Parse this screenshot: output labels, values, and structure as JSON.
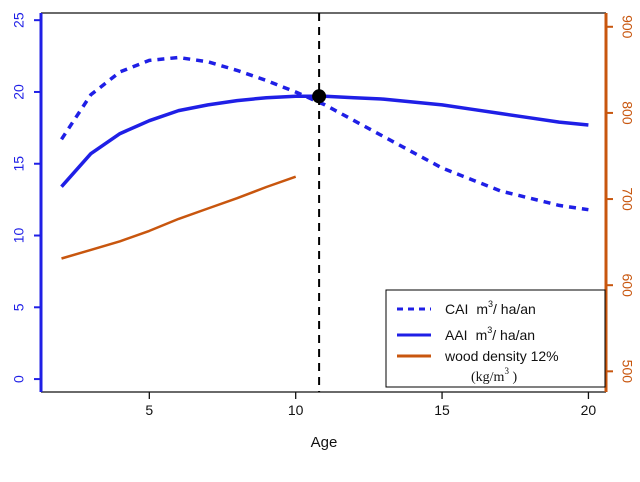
{
  "colors": {
    "left_axis": "#1f1fe6",
    "right_axis": "#c8560e",
    "cai": "#1f1fe6",
    "aai": "#1f1fe6",
    "density": "#c8560e",
    "marker": "#000000"
  },
  "chart_data": {
    "type": "line",
    "title": "",
    "xlabel": "Age",
    "ylabel_left": "",
    "ylabel_right": "",
    "xlim": [
      1.3,
      20.6
    ],
    "ylim_left": [
      -0.9,
      25.5
    ],
    "ylim_right": [
      476,
      916
    ],
    "x_ticks": [
      5,
      10,
      15,
      20
    ],
    "y_ticks_left": [
      0,
      5,
      10,
      15,
      20,
      25
    ],
    "y_ticks_right": [
      500,
      600,
      700,
      800,
      900
    ],
    "grid": false,
    "legend_position": "bottom-right",
    "vertical_line_x": 10.8,
    "intersection_point": {
      "x": 10.8,
      "y": 19.7
    },
    "series": [
      {
        "name": "CAI",
        "unit": "m",
        "unit_sup": "3",
        "unit_rest": "/ ha/an",
        "axis": "left",
        "style": "dashed",
        "x": [
          2,
          3,
          4,
          5,
          6,
          7,
          8,
          9,
          10,
          11,
          12,
          13,
          14,
          15,
          16,
          17,
          18,
          19,
          20
        ],
        "values": [
          16.7,
          19.8,
          21.4,
          22.2,
          22.4,
          22.1,
          21.5,
          20.8,
          20.0,
          19.1,
          18.0,
          16.9,
          15.8,
          14.7,
          13.9,
          13.1,
          12.6,
          12.1,
          11.8
        ]
      },
      {
        "name": "AAI",
        "unit": "m",
        "unit_sup": "3",
        "unit_rest": "/ ha/an",
        "axis": "left",
        "style": "solid",
        "x": [
          2,
          3,
          4,
          5,
          6,
          7,
          8,
          9,
          10,
          11,
          12,
          13,
          14,
          15,
          16,
          17,
          18,
          19,
          20
        ],
        "values": [
          13.4,
          15.7,
          17.1,
          18.0,
          18.7,
          19.1,
          19.4,
          19.6,
          19.7,
          19.7,
          19.6,
          19.5,
          19.3,
          19.1,
          18.8,
          18.5,
          18.2,
          17.9,
          17.7
        ]
      },
      {
        "name": "wood density 12%",
        "unit": "(kg/m",
        "unit_sup": "3",
        "unit_rest": " )",
        "axis": "right",
        "style": "solid",
        "x": [
          2,
          3,
          4,
          5,
          6,
          7,
          8,
          9,
          10
        ],
        "values": [
          631,
          641,
          651,
          663,
          677,
          689,
          701,
          714,
          726
        ]
      }
    ]
  }
}
